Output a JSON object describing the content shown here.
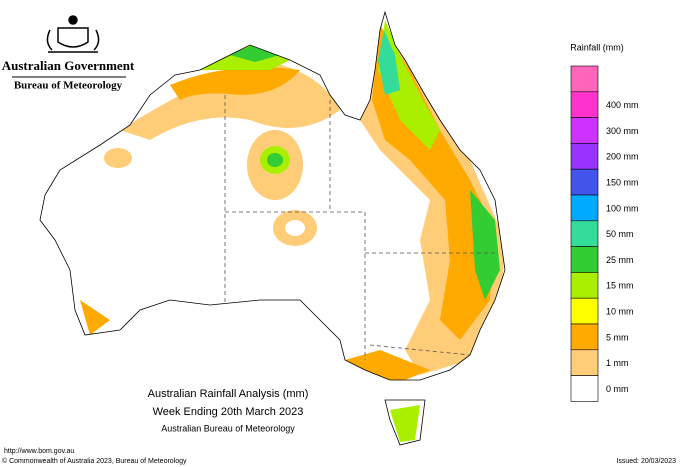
{
  "header": {
    "government": "Australian Government",
    "agency": "Bureau of Meteorology"
  },
  "legend": {
    "title": "Rainfall (mm)",
    "items": [
      {
        "label": null,
        "color": "#ff66bb"
      },
      {
        "label": "400 mm",
        "color": "#ff33cc"
      },
      {
        "label": "300 mm",
        "color": "#cc33ff"
      },
      {
        "label": "200 mm",
        "color": "#9933ff"
      },
      {
        "label": "150 mm",
        "color": "#4455ee"
      },
      {
        "label": "100 mm",
        "color": "#00aaff"
      },
      {
        "label": "50 mm",
        "color": "#33dd99"
      },
      {
        "label": "25 mm",
        "color": "#33cc33"
      },
      {
        "label": "15 mm",
        "color": "#aaee00"
      },
      {
        "label": "10 mm",
        "color": "#ffff00"
      },
      {
        "label": "5 mm",
        "color": "#ffaa00"
      },
      {
        "label": "1 mm",
        "color": "#ffcc77"
      },
      {
        "label": "0 mm",
        "color": "#ffffff"
      }
    ]
  },
  "caption": {
    "title": "Australian Rainfall Analysis (mm)",
    "period": "Week Ending 20th March 2023",
    "source": "Australian Bureau of Meteorology"
  },
  "footer": {
    "url": "http://www.bom.gov.au",
    "copyright": "© Commonwealth of Australia 2023, Bureau of Meteorology",
    "issued": "Issued: 20/03/2023"
  }
}
